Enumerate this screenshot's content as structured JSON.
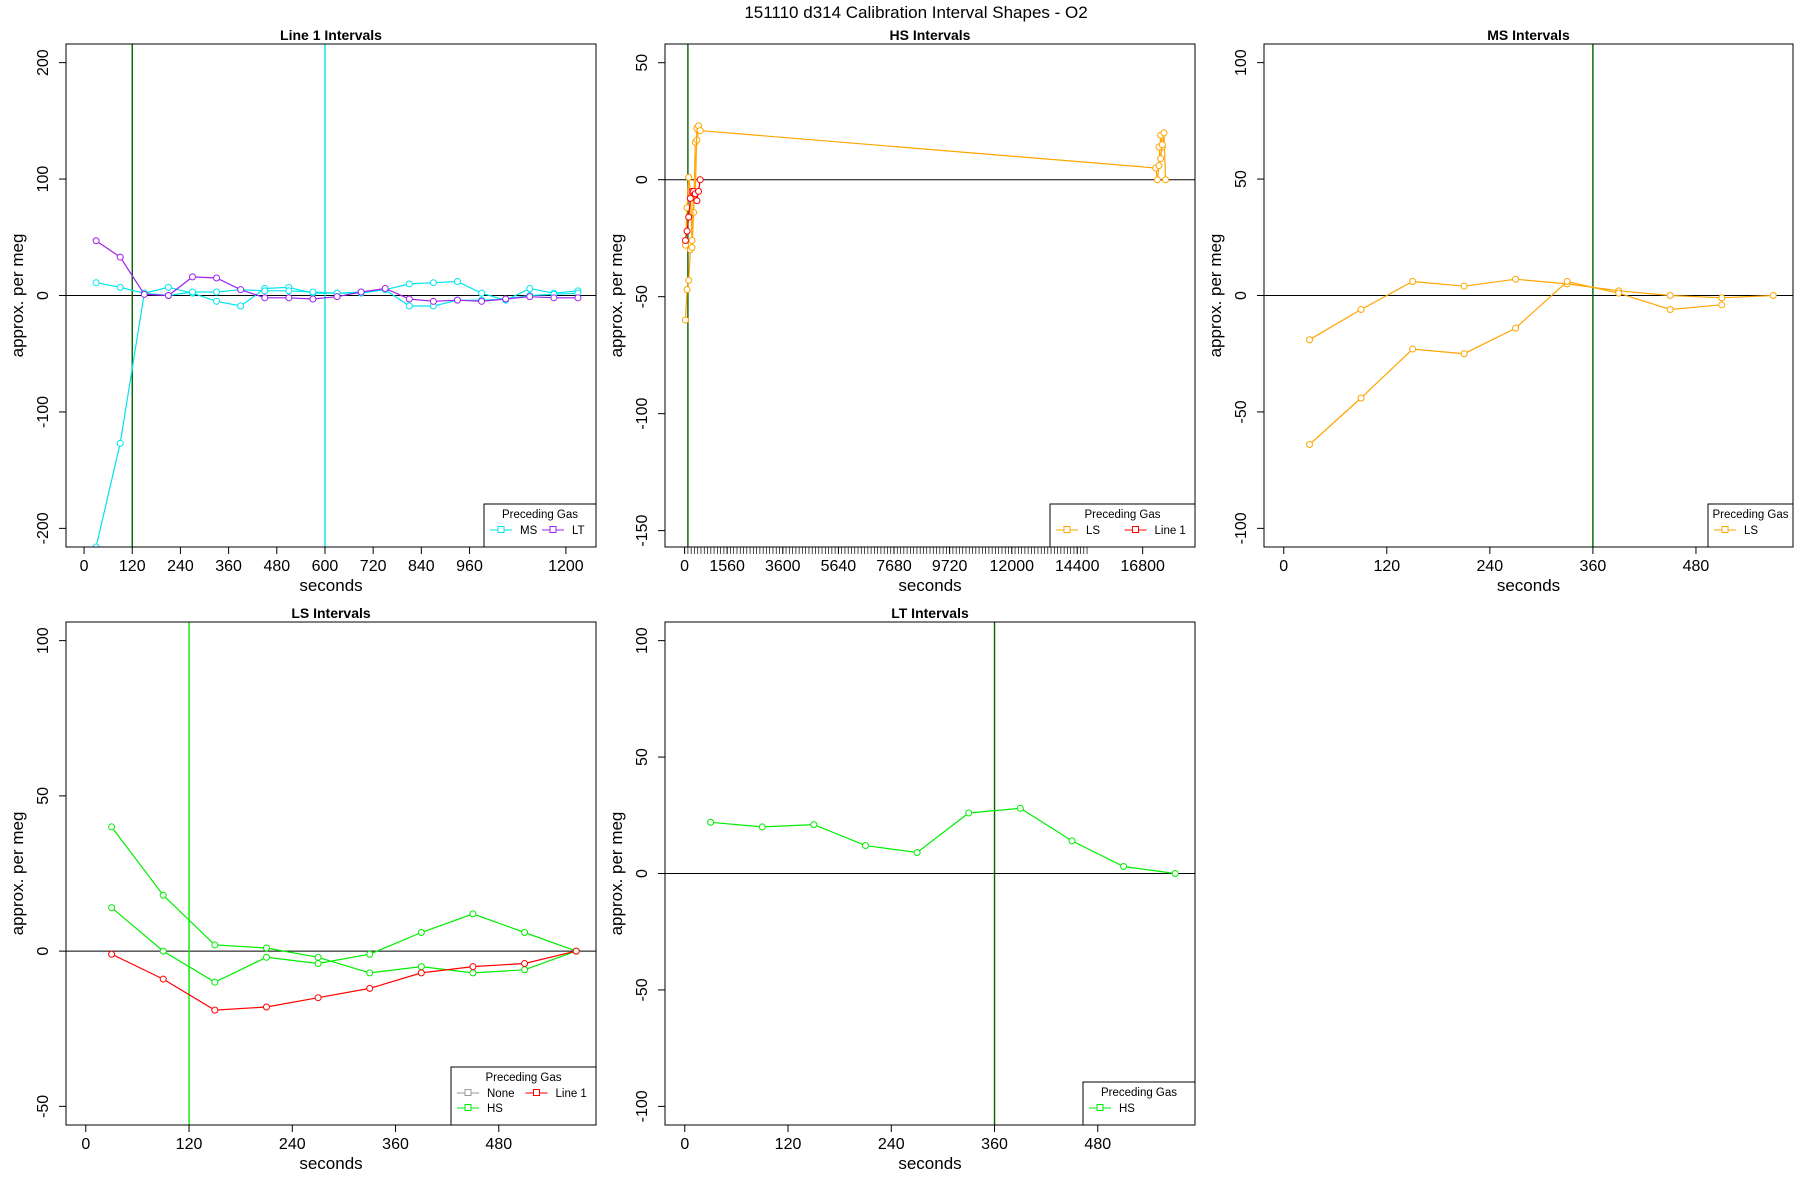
{
  "figure": {
    "title": "151110   d314   Calibration Interval Shapes - O2",
    "ylabel": "approx. per meg",
    "xlabel": "seconds",
    "legend_title": "Preceding Gas"
  },
  "colors": {
    "cyan": "#00e5ee",
    "purple": "#a020f0",
    "orange": "#ffa500",
    "red": "#ff0000",
    "green": "#00ee00",
    "gray": "#999999",
    "darkgreen": "#006400",
    "axis": "#000000"
  },
  "chart_data": [
    {
      "id": "line1",
      "type": "line",
      "title": "Line 1 Intervals",
      "xlabel": "seconds",
      "ylabel": "approx. per meg",
      "xlim": [
        -45,
        1275
      ],
      "ylim": [
        -216,
        216
      ],
      "xticks": [
        0,
        120,
        240,
        360,
        480,
        600,
        720,
        840,
        960,
        1200
      ],
      "yticks": [
        -200,
        -100,
        0,
        100,
        200
      ],
      "hlines": [
        0
      ],
      "vlines": [
        {
          "x": 120,
          "color": "darkgreen"
        },
        {
          "x": 600,
          "color": "cyan"
        }
      ],
      "legend": {
        "position": "bottom-right",
        "entries": [
          {
            "label": "MS",
            "color": "cyan"
          },
          {
            "label": "LT",
            "color": "purple"
          }
        ]
      },
      "series": [
        {
          "name": "MS",
          "color": "cyan",
          "x": [
            30,
            90,
            150
          ],
          "y": [
            -216,
            -127,
            2
          ]
        },
        {
          "name": "MS",
          "color": "cyan",
          "x": [
            30,
            90,
            150,
            210,
            270,
            330,
            390,
            450,
            510,
            570,
            630,
            690,
            750,
            810,
            870,
            930,
            990,
            1050,
            1110,
            1170,
            1230
          ],
          "y": [
            11,
            7,
            2,
            7,
            2,
            -5,
            -9,
            6,
            7,
            2,
            2,
            2,
            5,
            10,
            11,
            12,
            2,
            -4,
            6,
            2,
            4
          ]
        },
        {
          "name": "MS",
          "color": "cyan",
          "x": [
            150,
            210,
            270,
            330,
            390,
            450,
            510,
            570,
            630,
            690,
            750,
            810,
            870,
            930,
            990,
            1050,
            1110,
            1170,
            1230
          ],
          "y": [
            2,
            0,
            3,
            3,
            5,
            4,
            4,
            3,
            2,
            3,
            5,
            -9,
            -9,
            -4,
            -4,
            -3,
            0,
            1,
            2
          ]
        },
        {
          "name": "LT",
          "color": "purple",
          "x": [
            30,
            90,
            150,
            210,
            270,
            330,
            390,
            450,
            510,
            570,
            630,
            690,
            750,
            810,
            870,
            930,
            990,
            1050,
            1110,
            1170,
            1230
          ],
          "y": [
            47,
            33,
            1,
            0,
            16,
            15,
            5,
            -2,
            -2,
            -3,
            -1,
            3,
            6,
            -3,
            -5,
            -4,
            -5,
            -3,
            -1,
            -2,
            -2
          ]
        }
      ]
    },
    {
      "id": "hs",
      "type": "line",
      "title": "HS Intervals",
      "xlabel": "seconds",
      "ylabel": "approx. per meg",
      "xlim": [
        -720,
        18720
      ],
      "ylim": [
        -157,
        58
      ],
      "xticks": [
        0,
        1560,
        3600,
        5640,
        7680,
        9720,
        12000,
        14400,
        16800
      ],
      "minor_tick_from": 0,
      "minor_tick_to": 14760,
      "minor_tick_step": 120,
      "yticks": [
        -150,
        -100,
        -50,
        0,
        50
      ],
      "hlines": [
        0
      ],
      "vlines": [
        {
          "x": 120,
          "color": "darkgreen"
        }
      ],
      "legend": {
        "position": "bottom-right",
        "entries": [
          {
            "label": "LS",
            "color": "orange"
          },
          {
            "label": "Line 1",
            "color": "red"
          }
        ]
      },
      "series": [
        {
          "name": "LS",
          "color": "orange",
          "x": [
            30,
            90,
            150,
            210,
            270,
            330,
            390,
            450,
            510
          ],
          "y": [
            -60,
            -47,
            -43,
            -30,
            -29,
            -14,
            16,
            17,
            21
          ]
        },
        {
          "name": "LS",
          "color": "orange",
          "x": [
            30,
            90,
            150,
            210,
            270,
            330,
            390,
            450,
            510,
            570,
            17280,
            17340,
            17400,
            17460,
            17520,
            17580,
            17640
          ],
          "y": [
            -28,
            -12,
            1,
            -5,
            -26,
            -5,
            -6,
            22,
            23,
            21,
            5,
            0,
            6,
            19,
            14,
            20,
            0
          ]
        },
        {
          "name": "LS",
          "color": "orange",
          "x": [
            17400,
            17460,
            17520
          ],
          "y": [
            14,
            9,
            15
          ]
        },
        {
          "name": "Line 1",
          "color": "red",
          "x": [
            30,
            90,
            150,
            210,
            270,
            330,
            390,
            450,
            510,
            570
          ],
          "y": [
            -26,
            -22,
            -16,
            -8,
            -5,
            -5,
            -6,
            -9,
            -5,
            0
          ]
        }
      ]
    },
    {
      "id": "ms",
      "type": "line",
      "title": "MS Intervals",
      "xlabel": "seconds",
      "ylabel": "approx. per meg",
      "xlim": [
        -23,
        593
      ],
      "ylim": [
        -108,
        108
      ],
      "xticks": [
        0,
        120,
        240,
        360,
        480
      ],
      "yticks": [
        -100,
        -50,
        0,
        50,
        100
      ],
      "hlines": [
        0
      ],
      "vlines": [
        {
          "x": 360,
          "color": "darkgreen"
        }
      ],
      "legend": {
        "position": "bottom-right",
        "entries": [
          {
            "label": "LS",
            "color": "orange"
          }
        ]
      },
      "series": [
        {
          "name": "LS",
          "color": "orange",
          "x": [
            30,
            90,
            150,
            210,
            270,
            330,
            390,
            450,
            510,
            570
          ],
          "y": [
            -19,
            -6,
            6,
            4,
            7,
            5,
            2,
            0,
            -1,
            0
          ]
        },
        {
          "name": "LS",
          "color": "orange",
          "x": [
            30,
            90,
            150,
            210,
            270,
            330,
            390,
            450,
            510
          ],
          "y": [
            -64,
            -44,
            -23,
            -25,
            -14,
            6,
            1,
            -6,
            -4
          ]
        }
      ]
    },
    {
      "id": "ls",
      "type": "line",
      "title": "LS Intervals",
      "xlabel": "seconds",
      "ylabel": "approx. per meg",
      "xlim": [
        -23,
        593
      ],
      "ylim": [
        -56,
        106
      ],
      "xticks": [
        0,
        120,
        240,
        360,
        480
      ],
      "yticks": [
        -50,
        0,
        50,
        100
      ],
      "hlines": [
        0
      ],
      "vlines": [
        {
          "x": 120,
          "color": "green"
        }
      ],
      "legend": {
        "position": "bottom-right",
        "columns": 2,
        "entries": [
          {
            "label": "None",
            "color": "gray"
          },
          {
            "label": "Line 1",
            "color": "red"
          },
          {
            "label": "HS",
            "color": "green"
          }
        ]
      },
      "series": [
        {
          "name": "HS",
          "color": "green",
          "x": [
            30,
            90,
            150,
            210,
            270,
            330,
            390,
            450,
            510,
            570
          ],
          "y": [
            40,
            18,
            2,
            1,
            -2,
            -7,
            -5,
            -7,
            -6,
            0
          ]
        },
        {
          "name": "HS",
          "color": "green",
          "x": [
            30,
            90,
            150,
            210,
            270,
            330,
            390,
            450,
            510,
            570
          ],
          "y": [
            14,
            0,
            -10,
            -2,
            -4,
            -1,
            6,
            12,
            6,
            0
          ]
        },
        {
          "name": "Line 1",
          "color": "red",
          "x": [
            30,
            90,
            150,
            210,
            270,
            330,
            390,
            450,
            510,
            570
          ],
          "y": [
            -1,
            -9,
            -19,
            -18,
            -15,
            -12,
            -7,
            -5,
            -4,
            0
          ]
        }
      ]
    },
    {
      "id": "lt",
      "type": "line",
      "title": "LT Intervals",
      "xlabel": "seconds",
      "ylabel": "approx. per meg",
      "xlim": [
        -23,
        593
      ],
      "ylim": [
        -108,
        108
      ],
      "xticks": [
        0,
        120,
        240,
        360,
        480
      ],
      "yticks": [
        -100,
        -50,
        0,
        50,
        100
      ],
      "hlines": [
        0
      ],
      "vlines": [
        {
          "x": 360,
          "color": "darkgreen"
        }
      ],
      "legend": {
        "position": "bottom-right",
        "entries": [
          {
            "label": "HS",
            "color": "green"
          }
        ]
      },
      "series": [
        {
          "name": "HS",
          "color": "green",
          "x": [
            30,
            90,
            150,
            210,
            270,
            330,
            390,
            450,
            510,
            570
          ],
          "y": [
            22,
            20,
            21,
            12,
            9,
            26,
            28,
            14,
            3,
            0
          ]
        }
      ]
    }
  ]
}
